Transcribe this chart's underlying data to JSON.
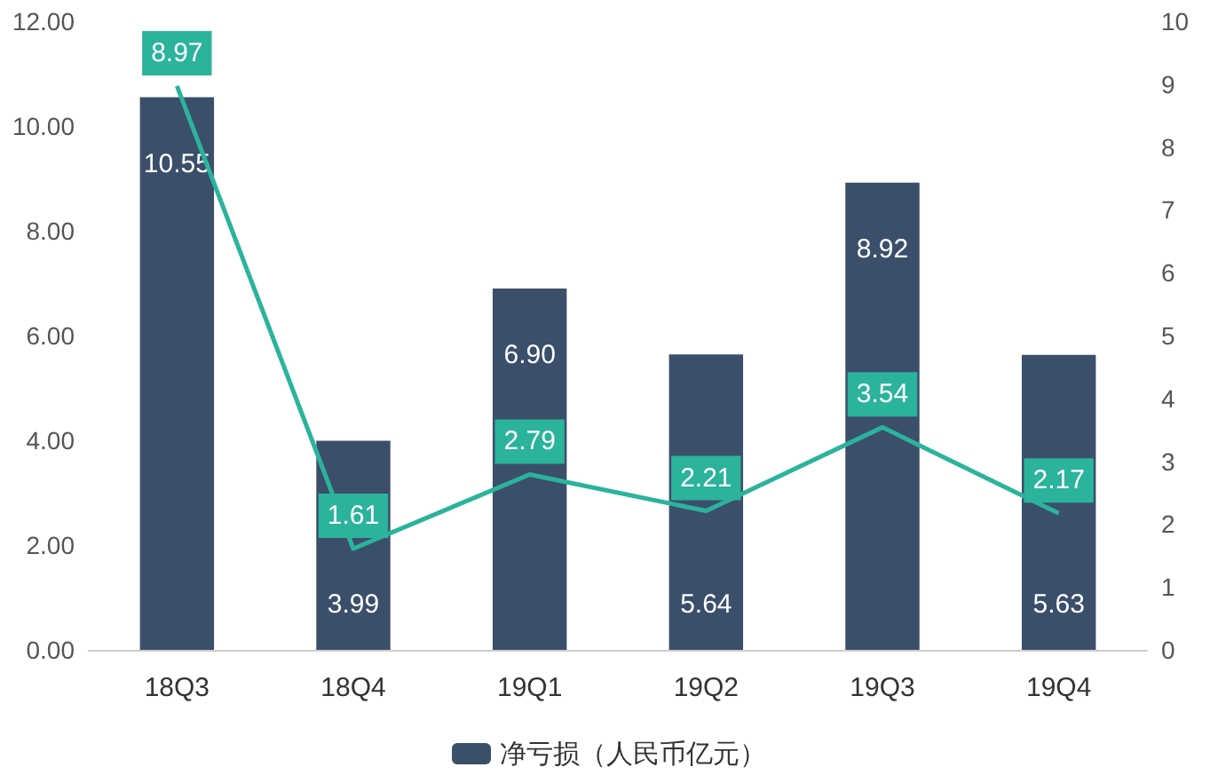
{
  "chart_data": {
    "type": "bar",
    "categories": [
      "18Q3",
      "18Q4",
      "19Q1",
      "19Q2",
      "19Q3",
      "19Q4"
    ],
    "series": [
      {
        "name": "净亏损（人民币亿元）",
        "color": "#3b4f6b",
        "values": [
          10.55,
          3.99,
          6.9,
          5.64,
          8.92,
          5.63
        ],
        "value_labels": [
          "10.55",
          "3.99",
          "6.90",
          "5.64",
          "8.92",
          "5.63"
        ]
      },
      {
        "type": "line",
        "axis": "y2",
        "color": "#2bb39c",
        "values": [
          8.97,
          1.61,
          2.79,
          2.21,
          3.54,
          2.17
        ]
      }
    ],
    "ylim": [
      0,
      12
    ],
    "yticks": [
      {
        "value": 0,
        "label": "0.00"
      },
      {
        "value": 2,
        "label": "2.00"
      },
      {
        "value": 4,
        "label": "4.00"
      },
      {
        "value": 6,
        "label": "6.00"
      },
      {
        "value": 8,
        "label": "8.00"
      },
      {
        "value": 10,
        "label": "10.00"
      },
      {
        "value": 12,
        "label": "12.00"
      }
    ],
    "y2lim": [
      0,
      10
    ],
    "y2ticks": [
      0,
      1,
      2,
      3,
      4,
      5,
      6,
      7,
      8,
      9,
      10
    ],
    "data_labels": true,
    "legend": "bottom",
    "grid": false,
    "marker": "none"
  }
}
